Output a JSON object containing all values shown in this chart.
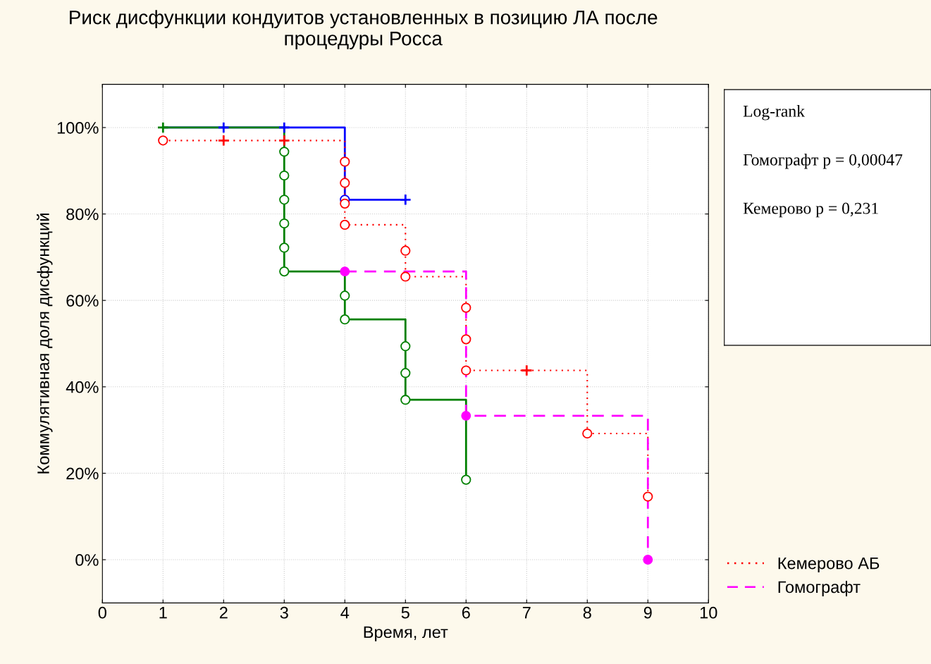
{
  "chart_data": {
    "type": "step",
    "title": "Риск дисфункции кондуитов установленных в позицию ЛА после\nпроцедуры Росса",
    "xlabel": "Время, лет",
    "ylabel": "Коммулятивная доля дисфункций",
    "xlim": [
      0,
      10
    ],
    "xticks": [
      0,
      1,
      2,
      3,
      4,
      5,
      6,
      7,
      8,
      9,
      10
    ],
    "ylim": [
      -10,
      110
    ],
    "yticks": [
      {
        "value": 0,
        "label": "0%"
      },
      {
        "value": 20,
        "label": "20%"
      },
      {
        "value": 40,
        "label": "40%"
      },
      {
        "value": 60,
        "label": "60%"
      },
      {
        "value": 80,
        "label": "80%"
      },
      {
        "value": 100,
        "label": "100%"
      }
    ],
    "grid": true,
    "legend": "bottom right",
    "annotations": [
      "Log-rank",
      "Гомографт p = 0,00047",
      "Кемерово p = 0,231"
    ],
    "series": [
      {
        "color": "#0000ff",
        "line_style": "solid",
        "x": [
          1,
          4,
          5
        ],
        "values": [
          100,
          83.3,
          83.3
        ]
      },
      {
        "type": "scatter",
        "color": "#0000ff",
        "marker": "circle",
        "x": [
          4
        ],
        "values": [
          83.3
        ]
      },
      {
        "type": "scatter",
        "color": "#0000ff",
        "marker": "cross",
        "x": [
          2,
          3,
          5
        ],
        "values": [
          100,
          100,
          83.3
        ]
      },
      {
        "name": "Кемерово АБ",
        "color": "#ff0000",
        "line_style": "dotted",
        "x": [
          1,
          4,
          5,
          6,
          8,
          9
        ],
        "values": [
          97,
          77.5,
          65.5,
          43.8,
          29.2,
          14.6
        ]
      },
      {
        "type": "scatter",
        "color": "#ff0000",
        "marker": "circle",
        "x": [
          1,
          4,
          4,
          4,
          4,
          5,
          5,
          6,
          6,
          6,
          8,
          9
        ],
        "values": [
          97,
          92.1,
          87.2,
          82.4,
          77.5,
          71.5,
          65.5,
          58.3,
          51,
          43.8,
          29.2,
          14.6
        ]
      },
      {
        "type": "scatter",
        "color": "#ff0000",
        "marker": "cross",
        "x": [
          2,
          3,
          7
        ],
        "values": [
          97,
          97,
          43.8
        ]
      },
      {
        "color": "#008000",
        "line_style": "solid",
        "x": [
          1,
          3,
          4,
          5,
          6
        ],
        "values": [
          100,
          66.7,
          55.6,
          37,
          18.5
        ]
      },
      {
        "type": "scatter",
        "color": "#008000",
        "marker": "circle",
        "x": [
          3,
          3,
          3,
          3,
          3,
          3,
          4,
          4,
          5,
          5,
          5,
          6
        ],
        "values": [
          94.4,
          88.9,
          83.3,
          77.8,
          72.2,
          66.7,
          61.1,
          55.6,
          49.4,
          43.2,
          37,
          18.5
        ]
      },
      {
        "type": "scatter",
        "color": "#008000",
        "marker": "cross",
        "x": [
          1
        ],
        "values": [
          100
        ]
      },
      {
        "name": "Гомографт",
        "color": "#ff00ff",
        "line_style": "dashed",
        "marker": "circle",
        "x": [
          4,
          6,
          9
        ],
        "values": [
          66.7,
          33.3,
          0
        ]
      }
    ]
  }
}
